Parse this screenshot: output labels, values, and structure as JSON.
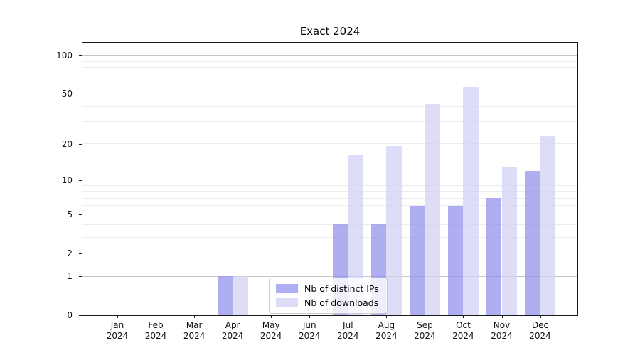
{
  "chart_data": {
    "type": "bar",
    "title": "Exact 2024",
    "categories": [
      "Jan",
      "Feb",
      "Mar",
      "Apr",
      "May",
      "Jun",
      "Jul",
      "Aug",
      "Sep",
      "Oct",
      "Nov",
      "Dec"
    ],
    "x_year_label": "2024",
    "series": [
      {
        "name": "Nb of distinct IPs",
        "color": "rgba(143,143,236,0.72)",
        "values": [
          0,
          0,
          0,
          1,
          0,
          0,
          4,
          4,
          6,
          6,
          7,
          12
        ]
      },
      {
        "name": "Nb of downloads",
        "color": "rgba(208,208,245,0.72)",
        "values": [
          0,
          0,
          0,
          1,
          0,
          0,
          16,
          19,
          42,
          57,
          13,
          23
        ]
      }
    ],
    "yscale": "log1p",
    "ylim": [
      0,
      126
    ],
    "y_ticks": [
      0,
      1,
      2,
      5,
      10,
      20,
      50,
      100
    ],
    "grid_major": [
      1,
      10,
      100
    ],
    "grid_minor": [
      2,
      3,
      4,
      5,
      6,
      7,
      8,
      9,
      20,
      30,
      40,
      50,
      60,
      70,
      80,
      90
    ],
    "legend_position": "lower-center",
    "style": {
      "major_grid_color": "#c6c6c6",
      "minor_grid_color": "#ececec",
      "spine_color": "#1a1a1a",
      "text_color": "#111111",
      "background": "#ffffff"
    }
  }
}
